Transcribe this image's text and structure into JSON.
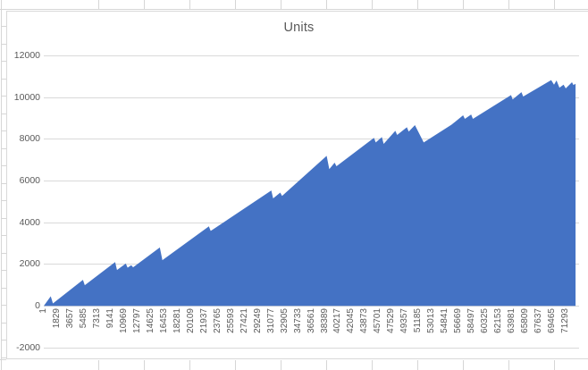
{
  "chart": {
    "title": "Units",
    "fill_color": "#4472C4",
    "gridline_color": "#d9d9d9",
    "label_color": "#595959"
  },
  "chart_data": {
    "type": "area",
    "title": "Units",
    "series_name": "Units",
    "legend": false,
    "grid": true,
    "ylim": [
      -2000,
      12000
    ],
    "y_tick_step": 2000,
    "y_tick_labels": [
      "12000",
      "10000",
      "8000",
      "6000",
      "4000",
      "2000",
      "0",
      "-2000"
    ],
    "y_tick_values": [
      12000,
      10000,
      8000,
      6000,
      4000,
      2000,
      0,
      -2000
    ],
    "x_tick_labels": [
      "1",
      "1829",
      "3657",
      "5485",
      "7313",
      "9141",
      "10969",
      "12797",
      "14625",
      "16453",
      "18281",
      "20109",
      "21937",
      "23765",
      "25593",
      "27421",
      "29249",
      "31077",
      "32905",
      "34733",
      "36561",
      "38389",
      "40217",
      "42045",
      "43873",
      "45701",
      "47529",
      "49357",
      "51185",
      "53013",
      "54841",
      "56669",
      "58497",
      "60325",
      "62153",
      "63981",
      "65809",
      "67637",
      "69465",
      "71293"
    ],
    "x_tick_step": 1828,
    "x_axis_max": 73120,
    "envelope_points": [
      [
        1,
        0
      ],
      [
        950,
        460
      ],
      [
        1250,
        120
      ],
      [
        5350,
        1250
      ],
      [
        5600,
        990
      ],
      [
        9750,
        2100
      ],
      [
        10000,
        1720
      ],
      [
        11200,
        2030
      ],
      [
        11450,
        1830
      ],
      [
        11950,
        1950
      ],
      [
        12200,
        1850
      ],
      [
        15850,
        2800
      ],
      [
        16200,
        2190
      ],
      [
        22550,
        3810
      ],
      [
        22800,
        3590
      ],
      [
        31080,
        5530
      ],
      [
        31330,
        5150
      ],
      [
        32300,
        5430
      ],
      [
        32550,
        5270
      ],
      [
        38640,
        7190
      ],
      [
        39000,
        6550
      ],
      [
        39730,
        6860
      ],
      [
        39980,
        6690
      ],
      [
        45100,
        8050
      ],
      [
        45350,
        7830
      ],
      [
        46180,
        8090
      ],
      [
        46430,
        7760
      ],
      [
        48020,
        8390
      ],
      [
        48270,
        8190
      ],
      [
        49600,
        8560
      ],
      [
        49850,
        8350
      ],
      [
        50700,
        8660
      ],
      [
        51900,
        7830
      ],
      [
        55700,
        8680
      ],
      [
        57280,
        9130
      ],
      [
        57520,
        8960
      ],
      [
        58380,
        9170
      ],
      [
        58620,
        8960
      ],
      [
        63830,
        10100
      ],
      [
        64050,
        9890
      ],
      [
        65250,
        10240
      ],
      [
        65490,
        10030
      ],
      [
        69310,
        10815
      ],
      [
        69700,
        10600
      ],
      [
        70040,
        10800
      ],
      [
        70440,
        10455
      ],
      [
        71000,
        10600
      ],
      [
        71300,
        10420
      ],
      [
        72150,
        10715
      ],
      [
        72350,
        10580
      ],
      [
        72640,
        10640
      ]
    ]
  }
}
